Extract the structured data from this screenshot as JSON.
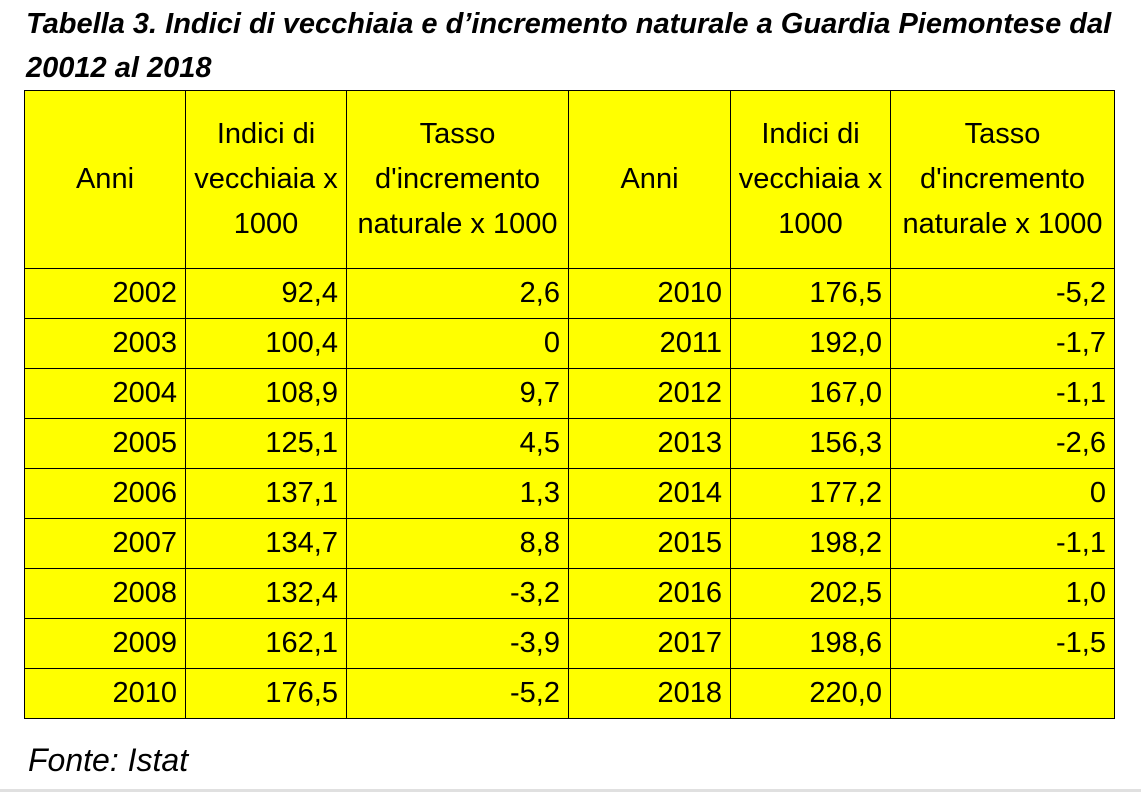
{
  "title": "Tabella 3. Indici di vecchiaia e d’incremento naturale a Guardia Piemontese dal 20012 al 2018",
  "headers": [
    "Anni",
    "Indici di vecchiaia x 1000",
    "Tasso d'incremento naturale x 1000",
    "Anni",
    "Indici di vecchiaia x 1000",
    "Tasso d'incremento naturale x 1000"
  ],
  "rows": [
    [
      "2002",
      "92,4",
      "2,6",
      "2010",
      "176,5",
      "-5,2"
    ],
    [
      "2003",
      "100,4",
      "0",
      "2011",
      "192,0",
      "-1,7"
    ],
    [
      "2004",
      "108,9",
      "9,7",
      "2012",
      "167,0",
      "-1,1"
    ],
    [
      "2005",
      "125,1",
      "4,5",
      "2013",
      "156,3",
      "-2,6"
    ],
    [
      "2006",
      "137,1",
      "1,3",
      "2014",
      "177,2",
      "0"
    ],
    [
      "2007",
      "134,7",
      "8,8",
      "2015",
      "198,2",
      "-1,1"
    ],
    [
      "2008",
      "132,4",
      "-3,2",
      "2016",
      "202,5",
      "1,0"
    ],
    [
      "2009",
      "162,1",
      "-3,9",
      "2017",
      "198,6",
      "-1,5"
    ],
    [
      "2010",
      "176,5",
      "-5,2",
      "2018",
      "220,0",
      ""
    ]
  ],
  "source": "Fonte: Istat",
  "colors": {
    "cell_background": "#ffff00",
    "border": "#000000"
  }
}
